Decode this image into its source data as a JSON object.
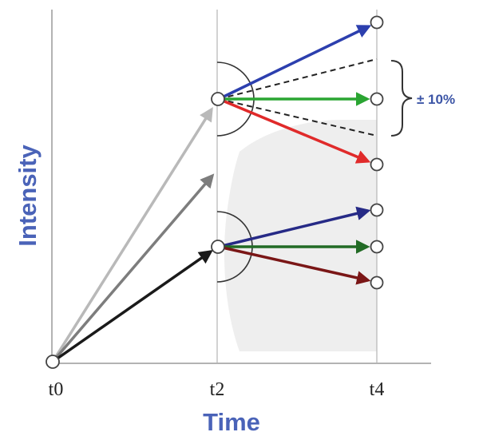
{
  "axes": {
    "y_label": "Intensity",
    "x_label": "Time",
    "ticks": [
      "t0",
      "t2",
      "t4"
    ]
  },
  "annotation": {
    "label": "± 10%"
  },
  "colors": {
    "axis_label": "#4a63b8",
    "annotation": "#3c55a6",
    "shade": "#eeeeee",
    "arrow_t0_light": "#b9b9b9",
    "arrow_t0_mid": "#7d7d7d",
    "arrow_t0_dark": "#1a1a1a",
    "arrow_upper_blue": "#2c3fae",
    "arrow_upper_green": "#2aa532",
    "arrow_upper_red": "#e02a2a",
    "arrow_lower_navy": "#262a86",
    "arrow_lower_green": "#226b25",
    "arrow_lower_maroon": "#7a1616"
  }
}
